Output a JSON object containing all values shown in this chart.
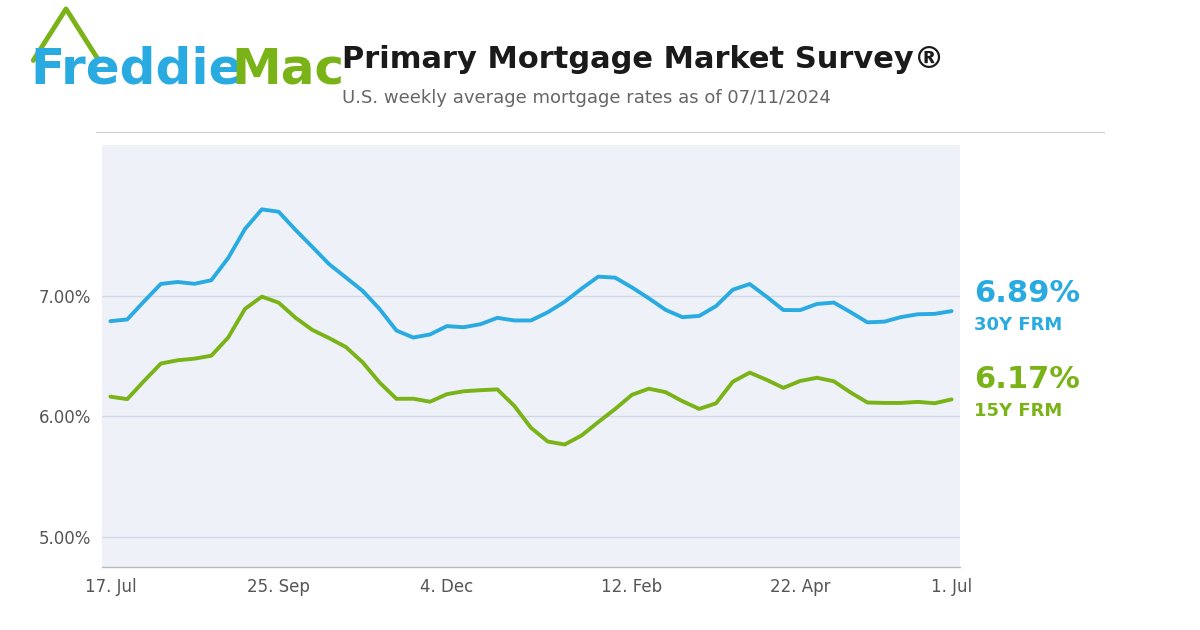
{
  "title": "Primary Mortgage Market Survey®",
  "subtitle": "U.S. weekly average mortgage rates as of 07/11/2024",
  "title_color": "#1a1a1a",
  "subtitle_color": "#666666",
  "freddie_blue": "#29ABE2",
  "freddie_green": "#7AB317",
  "bg_color": "#ffffff",
  "plot_bg_color": "#eef2f8",
  "grid_color": "#d0d8e8",
  "line_30y_color": "#29ABE2",
  "line_15y_color": "#7AB317",
  "label_30y": "6.89%",
  "label_30y_sub": "30Y FRM",
  "label_15y": "6.17%",
  "label_15y_sub": "15Y FRM",
  "ylim": [
    4.75,
    8.25
  ],
  "yticks": [
    5.0,
    6.0,
    7.0
  ],
  "ytick_labels": [
    "5.00%",
    "6.00%",
    "7.00%"
  ],
  "xtick_labels": [
    "17. Jul",
    "25. Sep",
    "4. Dec",
    "12. Feb",
    "22. Apr",
    "1. Jul"
  ],
  "xtick_positions": [
    0,
    10,
    20,
    31,
    41,
    50
  ],
  "rate_30y": [
    6.81,
    6.71,
    6.96,
    7.18,
    7.09,
    7.12,
    7.03,
    7.31,
    7.57,
    7.79,
    7.76,
    7.5,
    7.44,
    7.22,
    7.17,
    7.03,
    6.95,
    6.61,
    6.67,
    6.61,
    6.84,
    6.69,
    6.74,
    6.88,
    6.77,
    6.76,
    6.87,
    6.94,
    7.04,
    7.22,
    7.17,
    7.06,
    6.99,
    6.87,
    6.79,
    6.82,
    6.87,
    7.09,
    7.17,
    6.99,
    6.82,
    6.87,
    6.94,
    6.99,
    6.87,
    6.72,
    6.79,
    6.82,
    6.87,
    6.82,
    6.89
  ],
  "rate_15y": [
    6.21,
    6.01,
    6.32,
    6.51,
    6.43,
    6.51,
    6.44,
    6.59,
    6.98,
    7.03,
    6.98,
    6.79,
    6.71,
    6.64,
    6.61,
    6.44,
    6.32,
    6.0,
    6.27,
    5.99,
    6.26,
    6.2,
    6.18,
    6.32,
    6.09,
    5.87,
    5.77,
    5.72,
    5.83,
    5.97,
    6.03,
    6.22,
    6.25,
    6.22,
    6.12,
    6.04,
    6.0,
    6.38,
    6.39,
    6.34,
    6.12,
    6.36,
    6.31,
    6.33,
    6.2,
    6.05,
    6.15,
    6.07,
    6.17,
    6.05,
    6.17
  ]
}
